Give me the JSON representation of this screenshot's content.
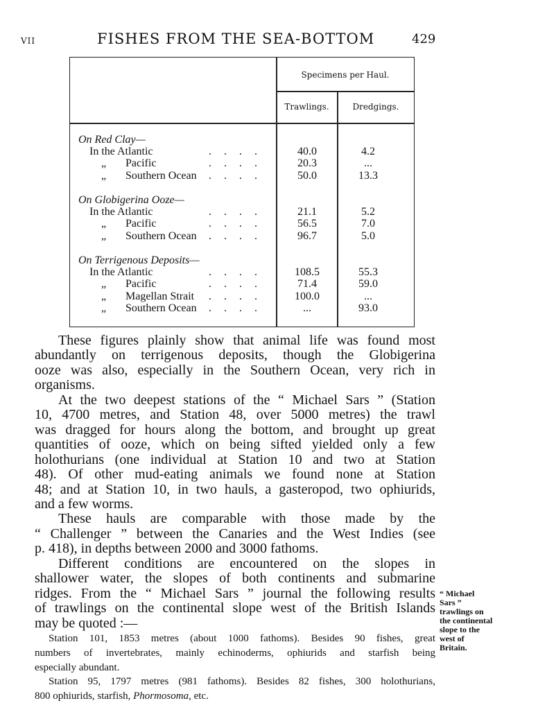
{
  "header": {
    "chapter": "VII",
    "title": "FISHES FROM THE SEA-BOTTOM",
    "page_number": "429"
  },
  "table": {
    "group_header": "Specimens per Haul.",
    "columns": [
      "Trawlings.",
      "Dredgings."
    ],
    "sections": [
      {
        "title": "On Red Clay—",
        "rows": [
          {
            "label": "In the Atlantic",
            "trawlings": "40.0",
            "dredgings": "4.2"
          },
          {
            "label": "„ Pacific",
            "trawlings": "20.3",
            "dredgings": "..."
          },
          {
            "label": "„ Southern Ocean",
            "trawlings": "50.0",
            "dredgings": "13.3"
          }
        ]
      },
      {
        "title": "On Globigerina Ooze—",
        "rows": [
          {
            "label": "In the Atlantic",
            "trawlings": "21.1",
            "dredgings": "5.2"
          },
          {
            "label": "„ Pacific",
            "trawlings": "56.5",
            "dredgings": "7.0"
          },
          {
            "label": "„ Southern Ocean",
            "trawlings": "96.7",
            "dredgings": "5.0"
          }
        ]
      },
      {
        "title": "On Terrigenous Deposits—",
        "rows": [
          {
            "label": "In the Atlantic",
            "trawlings": "108.5",
            "dredgings": "55.3"
          },
          {
            "label": "„ Pacific",
            "trawlings": "71.4",
            "dredgings": "59.0"
          },
          {
            "label": "„ Magellan Strait",
            "trawlings": "100.0",
            "dredgings": "..."
          },
          {
            "label": "„ Southern Ocean",
            "trawlings": "...",
            "dredgings": "93.0"
          }
        ]
      }
    ]
  },
  "body_lines": [
    "These figures plainly show that animal life was found most",
    "abundantly on terrigenous deposits, though the Globigerina",
    "ooze was also, especially in the Southern Ocean, very rich in",
    "organisms.",
    "At the two deepest stations of the “ Michael Sars ” (Station",
    "10, 4700 metres, and Station 48, over 5000 metres) the trawl",
    "was dragged for hours along the bottom, and brought up great",
    "quantities of ooze, which on being sifted yielded only a few",
    "holothurians (one individual at Station 10 and two at Station",
    "48). Of other mud-eating animals we found none at Station",
    "48; and at Station 10, in two hauls, a gasteropod, two ophiurids,",
    "and a few worms.",
    "These hauls are comparable with those made by the",
    "“ Challenger ” between the Canaries and the West Indies (see",
    "p. 418), in depths between 2000 and 3000 fathoms.",
    "Different conditions are encountered on the slopes in",
    "shallower water, the slopes of both continents and submarine",
    "ridges. From the “ Michael Sars ” journal the following results",
    "of trawlings on the continental slope west of the British Islands",
    "may be quoted :—"
  ],
  "quote_lines": [
    "Station 101, 1853 metres (about 1000 fathoms). Besides 90 fishes, great",
    "numbers of invertebrates, mainly echinoderms, ophiurids and starfish being",
    "especially abundant.",
    "Station 95, 1797 metres (981 fathoms). Besides 82 fishes, 300 holothurians,",
    "800 ophiurids, starfish, Phormosoma, etc."
  ],
  "margin_note": [
    "“ Michael",
    "Sars ”",
    "trawlings on",
    "the continental",
    "slope to the",
    "west of",
    "Britain."
  ]
}
